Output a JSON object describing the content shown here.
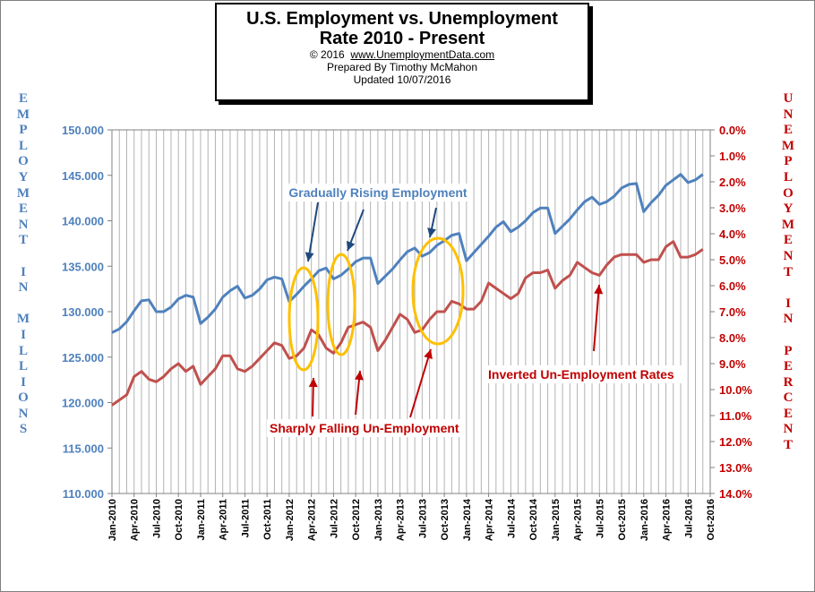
{
  "title_box": {
    "line1": "U.S. Employment vs. Unemployment",
    "line2": "Rate 2010 - Present",
    "copyright": "© 2016",
    "website": "www.UnemploymentData.com",
    "prepared": "Prepared  By Timothy McMahon",
    "updated": "Updated  10/07/2016"
  },
  "axis_labels": {
    "left": [
      "E",
      "M",
      "P",
      "L",
      "O",
      "Y",
      "M",
      "E",
      "N",
      "T",
      "",
      "I",
      "N",
      "",
      "M",
      "I",
      "L",
      "L",
      "I",
      "O",
      "N",
      "S"
    ],
    "right": [
      "U",
      "N",
      "E",
      "M",
      "P",
      "L",
      "O",
      "Y",
      "M",
      "E",
      "N",
      "T",
      "",
      "I",
      "N",
      "",
      "P",
      "E",
      "R",
      "C",
      "E",
      "N",
      "T"
    ]
  },
  "colors": {
    "employment": "#4f81bd",
    "unemployment": "#c0504d",
    "left_axis_text": "#4f81bd",
    "right_axis_text": "#c00000",
    "annotation_red": "#c00000",
    "annotation_blue": "#1f497d",
    "ellipse": "#ffc000"
  },
  "chart_data": {
    "type": "line",
    "title": "U.S. Employment vs. Unemployment Rate 2010 - Present",
    "x_tick_labels": [
      "Jan-2010",
      "Apr-2010",
      "Jul-2010",
      "Oct-2010",
      "Jan-2011",
      "Apr-2011",
      "Jul-2011",
      "Oct-2011",
      "Jan-2012",
      "Apr-2012",
      "Jul-2012",
      "Oct-2012",
      "Jan-2013",
      "Apr-2013",
      "Jul-2013",
      "Oct-2013",
      "Jan-2014",
      "Apr-2014",
      "Jul-2014",
      "Oct-2014",
      "Jan-2015",
      "Apr-2015",
      "Jul-2015",
      "Oct-2015",
      "Jan-2016",
      "Apr-2016",
      "Jul-2016",
      "Oct-2016"
    ],
    "x_start": "Jan-2010",
    "x_end": "Oct-2016",
    "y_left": {
      "range": [
        110,
        150
      ],
      "ticks": [
        "110.000",
        "115.000",
        "120.000",
        "125.000",
        "130.000",
        "135.000",
        "140.000",
        "145.000",
        "150.000"
      ]
    },
    "y_right": {
      "range": [
        0,
        14
      ],
      "inverted": true,
      "ticks": [
        "0.0%",
        "1.0%",
        "2.0%",
        "3.0%",
        "4.0%",
        "5.0%",
        "6.0%",
        "7.0%",
        "8.0%",
        "9.0%",
        "10.0%",
        "11.0%",
        "12.0%",
        "13.0%",
        "14.0%"
      ]
    },
    "grid": "vertical",
    "series": [
      {
        "axis": "left",
        "values": [
          127.7,
          128.1,
          128.9,
          130.1,
          131.2,
          131.3,
          130.0,
          130.0,
          130.5,
          131.4,
          131.8,
          131.6,
          128.7,
          129.4,
          130.3,
          131.6,
          132.3,
          132.8,
          131.5,
          131.8,
          132.5,
          133.5,
          133.8,
          133.6,
          131.1,
          131.9,
          132.8,
          133.6,
          134.5,
          134.8,
          133.6,
          134.0,
          134.7,
          135.5,
          135.9,
          135.9,
          133.1,
          133.9,
          134.7,
          135.7,
          136.6,
          137.0,
          136.1,
          136.5,
          137.3,
          137.8,
          138.4,
          138.6,
          135.6,
          136.5,
          137.4,
          138.3,
          139.3,
          139.9,
          138.8,
          139.3,
          140.0,
          140.9,
          141.4,
          141.4,
          138.6,
          139.4,
          140.2,
          141.2,
          142.1,
          142.6,
          141.8,
          142.1,
          142.7,
          143.6,
          144.0,
          144.1,
          141.0,
          142.0,
          142.8,
          143.9,
          144.5,
          145.1,
          144.2,
          144.5,
          145.1
        ]
      },
      {
        "axis": "right",
        "values": [
          10.6,
          10.4,
          10.2,
          9.5,
          9.3,
          9.6,
          9.7,
          9.5,
          9.2,
          9.0,
          9.3,
          9.1,
          9.8,
          9.5,
          9.2,
          8.7,
          8.7,
          9.2,
          9.3,
          9.1,
          8.8,
          8.5,
          8.2,
          8.3,
          8.8,
          8.7,
          8.4,
          7.7,
          7.9,
          8.4,
          8.6,
          8.2,
          7.6,
          7.5,
          7.4,
          7.6,
          8.5,
          8.1,
          7.6,
          7.1,
          7.3,
          7.8,
          7.7,
          7.3,
          7.0,
          7.0,
          6.6,
          6.7,
          6.9,
          6.9,
          6.6,
          5.9,
          6.1,
          6.3,
          6.5,
          6.3,
          5.7,
          5.5,
          5.5,
          5.4,
          6.1,
          5.8,
          5.6,
          5.1,
          5.3,
          5.5,
          5.6,
          5.2,
          4.9,
          4.8,
          4.8,
          4.8,
          5.1,
          5.0,
          5.0,
          4.5,
          4.3,
          4.9,
          4.9,
          4.8,
          4.6
        ]
      }
    ],
    "annotations": [
      {
        "text": "Gradually Rising Employment"
      },
      {
        "text": "Inverted Un-Employment Rates"
      },
      {
        "text": "Sharply Falling Un-Employment"
      }
    ]
  }
}
